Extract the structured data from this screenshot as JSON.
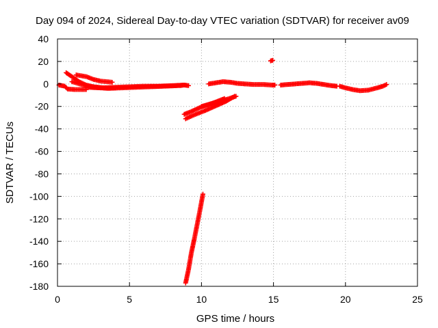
{
  "chart_data": {
    "type": "scatter",
    "title": "Day 094 of 2024, Sidereal Day-to-day VTEC variation (SDTVAR) for receiver av09",
    "xlabel": "GPS time / hours",
    "ylabel": "SDTVAR / TECUs",
    "xlim": [
      0,
      25
    ],
    "ylim": [
      -180,
      40
    ],
    "xticks": [
      0,
      5,
      10,
      15,
      20,
      25
    ],
    "yticks": [
      40,
      20,
      0,
      -20,
      -40,
      -60,
      -80,
      -100,
      -120,
      -140,
      -160,
      -180
    ],
    "grid": true,
    "marker": "plus",
    "color": "#ff0000",
    "series": [
      {
        "segments": [
          [
            [
              0.1,
              -1.0
            ],
            [
              0.5,
              -2.0
            ],
            [
              0.7,
              -4.5
            ],
            [
              1.2,
              -5.0
            ],
            [
              2.0,
              -5.0
            ]
          ],
          [
            [
              0.6,
              10.0
            ],
            [
              1.0,
              6.5
            ],
            [
              1.5,
              2.0
            ],
            [
              2.0,
              -1.0
            ],
            [
              2.5,
              -2.5
            ],
            [
              3.2,
              -3.5
            ],
            [
              4.0,
              -3.5
            ]
          ],
          [
            [
              1.3,
              8.0
            ],
            [
              2.0,
              6.5
            ],
            [
              2.5,
              4.0
            ],
            [
              3.0,
              2.5
            ],
            [
              3.8,
              1.5
            ]
          ],
          [
            [
              1.0,
              2.0
            ],
            [
              1.8,
              -1.0
            ],
            [
              2.5,
              -3.0
            ],
            [
              3.5,
              -4.0
            ],
            [
              4.5,
              -3.5
            ],
            [
              5.5,
              -3.0
            ],
            [
              6.5,
              -2.5
            ],
            [
              7.5,
              -2.0
            ],
            [
              8.4,
              -1.5
            ]
          ],
          [
            [
              2.0,
              -3.0
            ],
            [
              3.0,
              -3.5
            ],
            [
              4.0,
              -3.0
            ],
            [
              5.0,
              -2.5
            ],
            [
              6.0,
              -2.0
            ],
            [
              7.0,
              -2.0
            ],
            [
              8.0,
              -1.5
            ],
            [
              8.8,
              -1.0
            ]
          ],
          [
            [
              8.5,
              -1.5
            ],
            [
              8.8,
              -1.0
            ],
            [
              9.1,
              -1.5
            ]
          ],
          [
            [
              8.8,
              -27.0
            ],
            [
              9.3,
              -24.5
            ],
            [
              9.8,
              -21.5
            ],
            [
              10.3,
              -19.0
            ],
            [
              10.8,
              -17.0
            ],
            [
              11.2,
              -15.0
            ],
            [
              11.6,
              -13.0
            ]
          ],
          [
            [
              8.9,
              -31.0
            ],
            [
              9.5,
              -27.5
            ],
            [
              10.2,
              -24.0
            ],
            [
              11.0,
              -19.5
            ],
            [
              11.7,
              -15.5
            ],
            [
              12.3,
              -11.0
            ]
          ],
          [
            [
              10.0,
              -20.0
            ],
            [
              10.6,
              -18.0
            ],
            [
              11.2,
              -15.5
            ],
            [
              11.8,
              -13.5
            ],
            [
              12.4,
              -11.0
            ]
          ],
          [
            [
              8.9,
              -177.0
            ],
            [
              9.1,
              -165.0
            ],
            [
              9.3,
              -150.0
            ],
            [
              9.5,
              -138.0
            ],
            [
              9.7,
              -125.0
            ],
            [
              9.9,
              -112.0
            ],
            [
              10.1,
              -98.0
            ]
          ],
          [
            [
              10.5,
              0.0
            ],
            [
              11.0,
              1.0
            ],
            [
              11.5,
              2.0
            ],
            [
              12.0,
              1.5
            ],
            [
              12.5,
              0.5
            ],
            [
              13.0,
              0.0
            ],
            [
              13.6,
              -0.5
            ],
            [
              14.3,
              -0.5
            ],
            [
              14.9,
              -1.0
            ],
            [
              15.1,
              -1.0
            ]
          ],
          [
            [
              14.8,
              20.5
            ],
            [
              14.95,
              21.0
            ]
          ],
          [
            [
              15.5,
              -1.0
            ],
            [
              16.0,
              -0.5
            ],
            [
              16.5,
              0.0
            ],
            [
              17.0,
              0.5
            ],
            [
              17.5,
              1.0
            ],
            [
              18.0,
              0.5
            ],
            [
              18.5,
              -0.5
            ],
            [
              19.0,
              -1.5
            ],
            [
              19.4,
              -2.0
            ]
          ],
          [
            [
              19.6,
              -2.0
            ],
            [
              20.0,
              -3.5
            ],
            [
              20.5,
              -5.0
            ],
            [
              21.0,
              -6.0
            ],
            [
              21.6,
              -5.5
            ],
            [
              22.2,
              -3.5
            ],
            [
              22.6,
              -2.0
            ],
            [
              22.85,
              -0.5
            ]
          ]
        ]
      }
    ]
  }
}
